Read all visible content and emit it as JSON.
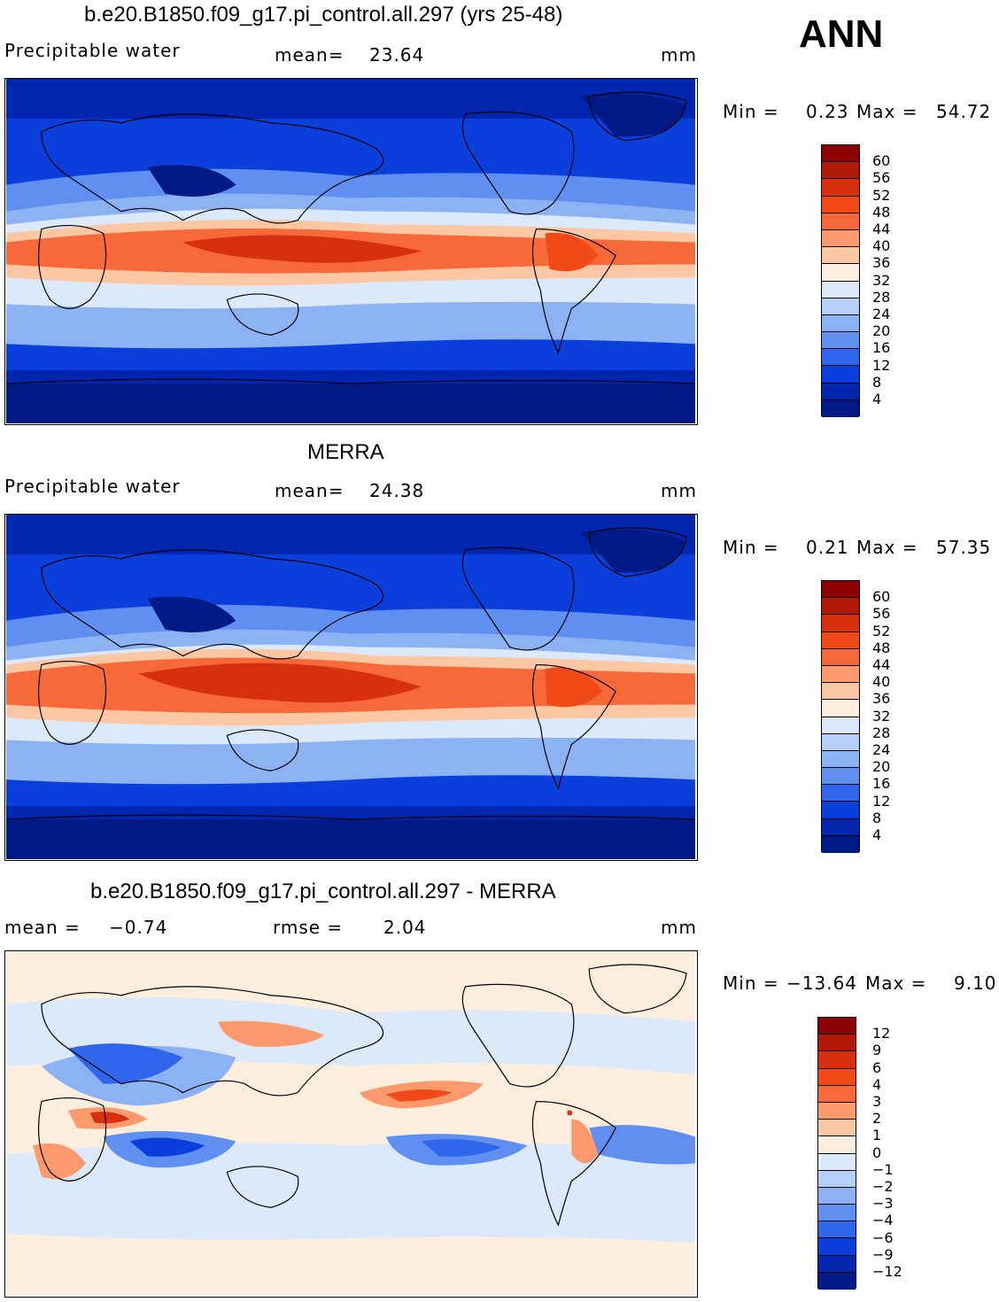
{
  "season": "ANN",
  "units": "mm",
  "panels": [
    {
      "title": "b.e20.B1850.f09_g17.pi_control.all.297 (yrs 25-48)",
      "variable": "Precipitable  water",
      "stat_label": "mean=",
      "stat_value": "23.64",
      "min_label": "Min  =",
      "min_value": "0.23",
      "max_label": "Max  =",
      "max_value": "54.72",
      "colorbar": {
        "levels": [
          "60",
          "56",
          "52",
          "48",
          "44",
          "40",
          "36",
          "32",
          "28",
          "24",
          "20",
          "16",
          "12",
          "8",
          "4"
        ],
        "colors": [
          "#8b0000",
          "#b0180a",
          "#d6300e",
          "#f04a18",
          "#f8693a",
          "#fc9a6e",
          "#fdc7a4",
          "#fdeede",
          "#dce9fb",
          "#b6cff8",
          "#8cb2f4",
          "#5f8ff0",
          "#3066ec",
          "#0b3fdc",
          "#0026b0",
          "#001a85"
        ]
      }
    },
    {
      "title": "MERRA",
      "variable": "Precipitable  water",
      "stat_label": "mean=",
      "stat_value": "24.38",
      "min_label": "Min  =",
      "min_value": "0.21",
      "max_label": "Max  =",
      "max_value": "57.35",
      "colorbar": {
        "levels": [
          "60",
          "56",
          "52",
          "48",
          "44",
          "40",
          "36",
          "32",
          "28",
          "24",
          "20",
          "16",
          "12",
          "8",
          "4"
        ],
        "colors": [
          "#8b0000",
          "#b0180a",
          "#d6300e",
          "#f04a18",
          "#f8693a",
          "#fc9a6e",
          "#fdc7a4",
          "#fdeede",
          "#dce9fb",
          "#b6cff8",
          "#8cb2f4",
          "#5f8ff0",
          "#3066ec",
          "#0b3fdc",
          "#0026b0",
          "#001a85"
        ]
      }
    },
    {
      "title": "b.e20.B1850.f09_g17.pi_control.all.297 - MERRA",
      "stat_label": "mean  =",
      "stat_value": "−0.74",
      "rmse_label": "rmse  =",
      "rmse_value": "2.04",
      "min_label": "Min  =",
      "min_value": "−13.64",
      "max_label": "Max  =",
      "max_value": "9.10",
      "colorbar": {
        "levels": [
          "12",
          "9",
          "6",
          "4",
          "3",
          "2",
          "1",
          "0",
          "−1",
          "−2",
          "−3",
          "−4",
          "−6",
          "−9",
          "−12"
        ],
        "colors": [
          "#8b0000",
          "#b0180a",
          "#d6300e",
          "#f04a18",
          "#f8693a",
          "#fc9a6e",
          "#fdc7a4",
          "#fdeede",
          "#dce9fb",
          "#b6cff8",
          "#8cb2f4",
          "#5f8ff0",
          "#3066ec",
          "#0b3fdc",
          "#0026b0",
          "#001a85"
        ]
      }
    }
  ]
}
